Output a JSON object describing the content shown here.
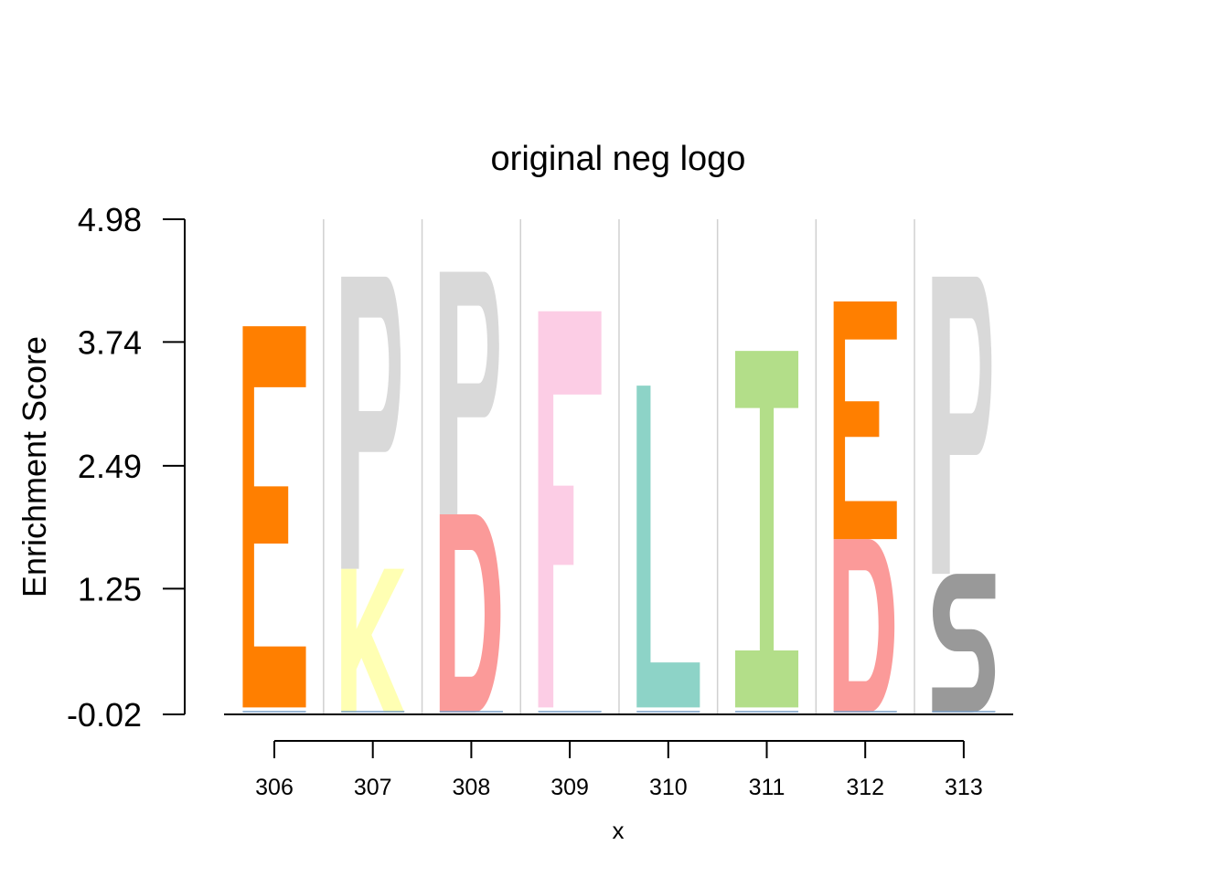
{
  "chart_data": {
    "type": "sequence-logo",
    "title": "original neg logo",
    "xlabel": "x",
    "ylabel": "Enrichment Score",
    "ylim": [
      -0.02,
      4.98
    ],
    "yticks": [
      "4.98",
      "3.74",
      "2.49",
      "1.25",
      "-0.02"
    ],
    "ytick_values": [
      4.98,
      3.74,
      2.49,
      1.25,
      -0.02
    ],
    "positions": [
      "306",
      "307",
      "308",
      "309",
      "310",
      "311",
      "312",
      "313"
    ],
    "stacks": [
      {
        "position": "306",
        "letters": [
          {
            "letter": "E",
            "from": 0.05,
            "to": 3.9
          }
        ]
      },
      {
        "position": "307",
        "letters": [
          {
            "letter": "K",
            "from": 0.0,
            "to": 1.45
          },
          {
            "letter": "P",
            "from": 1.45,
            "to": 4.4
          }
        ]
      },
      {
        "position": "308",
        "letters": [
          {
            "letter": "D",
            "from": 0.0,
            "to": 2.0
          },
          {
            "letter": "P",
            "from": 2.0,
            "to": 4.45
          }
        ]
      },
      {
        "position": "309",
        "letters": [
          {
            "letter": "F",
            "from": 0.05,
            "to": 4.05
          }
        ]
      },
      {
        "position": "310",
        "letters": [
          {
            "letter": "L",
            "from": 0.05,
            "to": 3.3
          }
        ]
      },
      {
        "position": "311",
        "letters": [
          {
            "letter": "I",
            "from": 0.05,
            "to": 3.65
          }
        ]
      },
      {
        "position": "312",
        "letters": [
          {
            "letter": "D",
            "from": 0.0,
            "to": 1.75
          },
          {
            "letter": "E",
            "from": 1.75,
            "to": 4.15
          }
        ]
      },
      {
        "position": "313",
        "letters": [
          {
            "letter": "S",
            "from": 0.0,
            "to": 1.4
          },
          {
            "letter": "P",
            "from": 1.4,
            "to": 4.4
          }
        ]
      }
    ],
    "letter_colors": {
      "E": "#ff7f00",
      "P": "#d9d9d9",
      "K": "#ffffb3",
      "D": "#fb9a99",
      "F": "#fccde5",
      "L": "#8dd3c7",
      "I": "#b3de89",
      "S": "#999999"
    },
    "grid": "vertical",
    "legend": "none"
  }
}
